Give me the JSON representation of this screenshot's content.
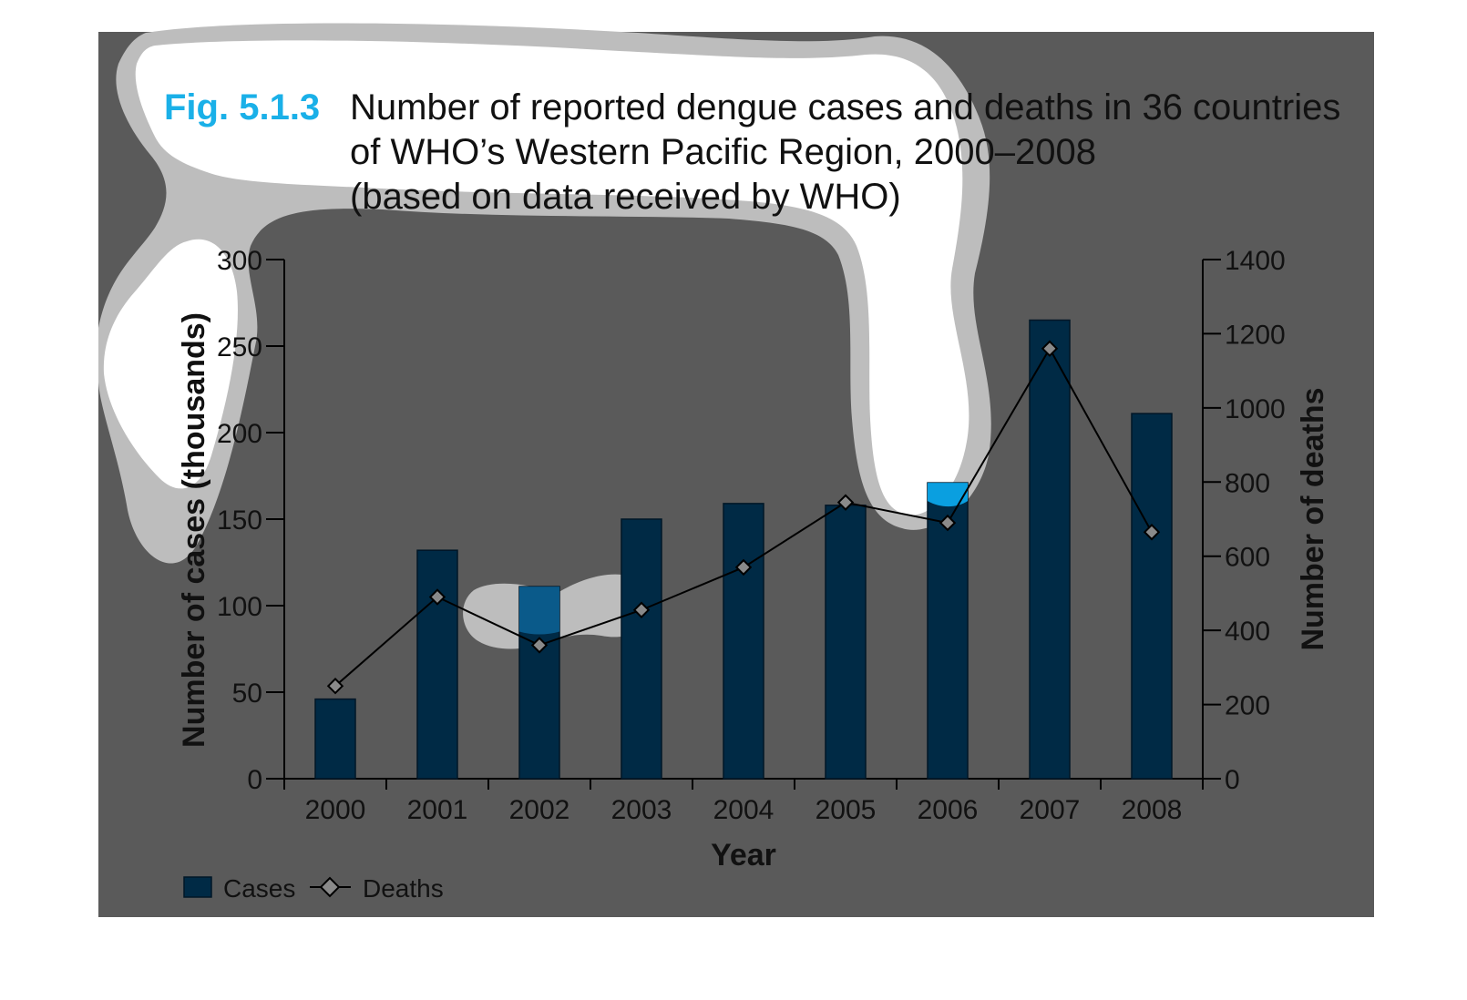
{
  "figure": {
    "label": "Fig. 5.1.3",
    "title_lines": [
      "Number of reported dengue cases and deaths in 36 countries",
      "of WHO’s Western Pacific Region, 2000–2008",
      "(based on data received by WHO)"
    ]
  },
  "colors": {
    "panel_background": "#5a5a5a",
    "bar": "#002a45",
    "bar_stroke": "#001626",
    "highlight_blob": "#ffffff",
    "blob_halo": "#bdbdbd",
    "highlight_bar": "#0a9fe0",
    "deaths_marker": "#8a8a8a"
  },
  "chart_data": {
    "type": "bar",
    "categories": [
      "2000",
      "2001",
      "2002",
      "2003",
      "2004",
      "2005",
      "2006",
      "2007",
      "2008"
    ],
    "series": [
      {
        "name": "Cases",
        "type": "bar",
        "axis": "left",
        "values": [
          46,
          132,
          111,
          150,
          159,
          158,
          171,
          265,
          211
        ]
      },
      {
        "name": "Deaths",
        "type": "line",
        "axis": "right",
        "marker": "diamond",
        "values": [
          250,
          490,
          360,
          455,
          570,
          745,
          690,
          1160,
          665
        ]
      }
    ],
    "xlabel": "Year",
    "ylabel": "Number of cases (thousands)",
    "y2label": "Number of deaths",
    "ylim": [
      0,
      300
    ],
    "y2lim": [
      0,
      1400
    ],
    "yticks": [
      "0",
      "50",
      "100",
      "150",
      "200",
      "250",
      "300"
    ],
    "y2ticks": [
      "0",
      "200",
      "400",
      "600",
      "800",
      "1000",
      "1200",
      "1400"
    ],
    "legend": {
      "position": "bottom-left",
      "entries": [
        "Cases",
        "Deaths"
      ]
    },
    "grid": false
  }
}
